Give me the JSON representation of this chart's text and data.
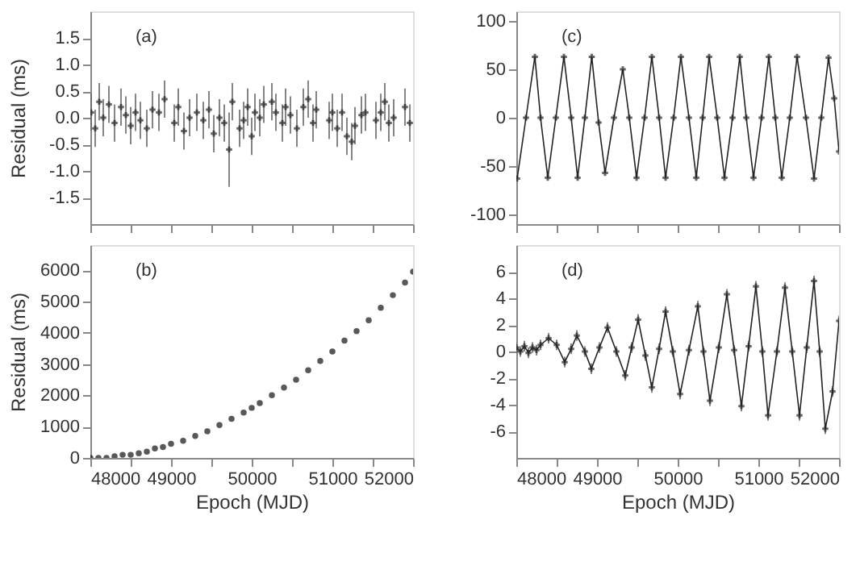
{
  "chart_data": [
    {
      "type": "scatter",
      "ylabel": "Residual (ms)",
      "annotations": [
        "(a)"
      ],
      "marker": "cross",
      "tick_labels": "y",
      "grid": false,
      "xlim": [
        48000,
        52000
      ],
      "xticks": [
        48000,
        {
          "value": 48500,
          "label": null
        },
        49000,
        {
          "value": 49500,
          "label": null
        },
        50000,
        {
          "value": 50500,
          "label": null
        },
        51000,
        {
          "value": 51500,
          "label": null
        },
        52000
      ],
      "ylim": [
        -2,
        2
      ],
      "yticks": [
        -1.5,
        {
          "value": -1,
          "label": "-1.0"
        },
        -0.5,
        {
          "value": 0,
          "label": "0.0"
        },
        0.5,
        {
          "value": 1,
          "label": "1.0"
        },
        1.5
      ],
      "series": [
        {
          "color": "#222222",
          "x": [
            48010,
            48060,
            48110,
            48160,
            48230,
            48300,
            48380,
            48440,
            48500,
            48560,
            48620,
            48700,
            48770,
            48850,
            48920,
            49040,
            49090,
            49160,
            49230,
            49320,
            49400,
            49470,
            49530,
            49600,
            49660,
            49720,
            49760,
            49850,
            49900,
            49950,
            50000,
            50040,
            50100,
            50150,
            50250,
            50300,
            50380,
            50420,
            50480,
            50560,
            50640,
            50700,
            50760,
            50800,
            50960,
            51000,
            51060,
            51120,
            51180,
            51240,
            51280,
            51360,
            51410,
            51540,
            51600,
            51650,
            51700,
            51760,
            51900,
            51960
          ],
          "values": [
            0.1,
            -0.2,
            0.3,
            0.0,
            0.25,
            -0.1,
            0.2,
            0.05,
            -0.15,
            0.1,
            -0.05,
            -0.2,
            0.15,
            0.1,
            0.35,
            -0.1,
            0.2,
            -0.25,
            0.0,
            0.1,
            -0.05,
            0.15,
            -0.3,
            0.0,
            -0.1,
            -0.6,
            0.3,
            -0.2,
            -0.05,
            0.2,
            -0.35,
            0.1,
            0.0,
            0.25,
            0.3,
            0.1,
            -0.1,
            0.2,
            0.05,
            -0.2,
            0.2,
            0.35,
            -0.1,
            0.15,
            -0.05,
            0.1,
            -0.2,
            0.1,
            -0.35,
            -0.45,
            -0.15,
            0.05,
            0.1,
            -0.05,
            0.1,
            0.3,
            -0.1,
            0.0,
            0.2,
            -0.1
          ],
          "errors": [
            0.35,
            0.35,
            0.35,
            0.35,
            0.35,
            0.35,
            0.35,
            0.35,
            0.35,
            0.35,
            0.35,
            0.35,
            0.35,
            0.35,
            0.35,
            0.35,
            0.35,
            0.35,
            0.35,
            0.35,
            0.35,
            0.35,
            0.35,
            0.35,
            0.35,
            0.7,
            0.35,
            0.35,
            0.35,
            0.35,
            0.35,
            0.35,
            0.35,
            0.35,
            0.35,
            0.35,
            0.35,
            0.35,
            0.35,
            0.35,
            0.35,
            0.35,
            0.35,
            0.35,
            0.35,
            0.35,
            0.35,
            0.35,
            0.35,
            0.35,
            0.35,
            0.35,
            0.35,
            0.35,
            0.35,
            0.35,
            0.35,
            0.35,
            0.35,
            0.35
          ]
        }
      ]
    },
    {
      "type": "line",
      "annotations": [
        "(c)"
      ],
      "marker": "cross",
      "tick_labels": "y",
      "grid": false,
      "xlim": [
        48000,
        52000
      ],
      "xticks": [
        48000,
        {
          "value": 48500,
          "label": null
        },
        49000,
        {
          "value": 49500,
          "label": null
        },
        50000,
        {
          "value": 50500,
          "label": null
        },
        51000,
        {
          "value": 51500,
          "label": null
        },
        52000
      ],
      "ylim": [
        -110,
        110
      ],
      "yticks": [
        -100,
        -50,
        0,
        50,
        100
      ],
      "series": [
        {
          "color": "#222222",
          "x": [
            48010,
            48120,
            48230,
            48300,
            48390,
            48490,
            48590,
            48680,
            48760,
            48850,
            48935,
            49020,
            49100,
            49210,
            49320,
            49400,
            49490,
            49590,
            49680,
            49770,
            49850,
            49950,
            50040,
            50140,
            50230,
            50310,
            50390,
            50490,
            50580,
            50680,
            50770,
            50850,
            50940,
            51040,
            51130,
            51210,
            51290,
            51390,
            51480,
            51590,
            51690,
            51780,
            51870,
            51940,
            52000
          ],
          "values": [
            -63,
            0,
            63,
            0,
            -62,
            0,
            63,
            0,
            -62,
            0,
            63,
            -5,
            -57,
            0,
            50,
            0,
            -62,
            0,
            63,
            0,
            -62,
            0,
            63,
            0,
            -62,
            0,
            63,
            0,
            -62,
            0,
            63,
            0,
            -62,
            0,
            63,
            0,
            -62,
            0,
            63,
            0,
            -63,
            0,
            62,
            20,
            -35
          ]
        }
      ]
    },
    {
      "type": "scatter",
      "xlabel": "Epoch (MJD)",
      "ylabel": "Residual (ms)",
      "annotations": [
        "(b)"
      ],
      "marker": "circle",
      "grid": false,
      "xlim": [
        48000,
        52000
      ],
      "xticks": [
        48000,
        {
          "value": 48500,
          "label": null
        },
        49000,
        {
          "value": 49500,
          "label": null
        },
        50000,
        {
          "value": 50500,
          "label": null
        },
        51000,
        {
          "value": 51500,
          "label": null
        },
        52000
      ],
      "ylim": [
        0,
        6800
      ],
      "yticks": [
        0,
        1000,
        2000,
        3000,
        4000,
        5000,
        6000
      ],
      "series": [
        {
          "color": "#111111",
          "x": [
            48000,
            48100,
            48200,
            48300,
            48400,
            48500,
            48600,
            48700,
            48800,
            48900,
            49000,
            49150,
            49300,
            49450,
            49600,
            49750,
            49900,
            50000,
            50100,
            50250,
            50400,
            50550,
            50700,
            50850,
            51000,
            51150,
            51300,
            51450,
            51600,
            51750,
            51900,
            52000
          ],
          "values": [
            0,
            0,
            0,
            50,
            100,
            100,
            150,
            200,
            300,
            350,
            450,
            550,
            700,
            850,
            1050,
            1250,
            1450,
            1600,
            1750,
            2000,
            2250,
            2500,
            2800,
            3100,
            3400,
            3750,
            4050,
            4400,
            4800,
            5200,
            5600,
            5950
          ]
        }
      ]
    },
    {
      "type": "line",
      "xlabel": "Epoch (MJD)",
      "annotations": [
        "(d)"
      ],
      "marker": "cross",
      "grid": false,
      "xlim": [
        48000,
        52000
      ],
      "xticks": [
        48000,
        {
          "value": 48500,
          "label": null
        },
        49000,
        {
          "value": 49500,
          "label": null
        },
        50000,
        {
          "value": 50500,
          "label": null
        },
        51000,
        {
          "value": 51500,
          "label": null
        },
        52000
      ],
      "ylim": [
        -8,
        8
      ],
      "yticks": [
        -6,
        -4,
        -2,
        0,
        2,
        4,
        6
      ],
      "series": [
        {
          "color": "#222222",
          "x": [
            48000,
            48050,
            48100,
            48150,
            48200,
            48250,
            48300,
            48400,
            48500,
            48600,
            48680,
            48750,
            48850,
            48930,
            49030,
            49130,
            49240,
            49350,
            49430,
            49510,
            49600,
            49680,
            49770,
            49850,
            49940,
            50030,
            50140,
            50250,
            50320,
            50400,
            50510,
            50610,
            50700,
            50790,
            50880,
            50970,
            51050,
            51120,
            51230,
            51330,
            51420,
            51510,
            51600,
            51690,
            51760,
            51830,
            51920,
            52000
          ],
          "values": [
            0.3,
            0.0,
            0.4,
            -0.1,
            0.3,
            0.1,
            0.5,
            1.0,
            0.5,
            -0.8,
            0.2,
            1.2,
            0.0,
            -1.3,
            0.3,
            1.8,
            0.0,
            -1.8,
            0.3,
            2.4,
            -0.3,
            -2.7,
            0.2,
            3.0,
            0.0,
            -3.2,
            0.1,
            3.4,
            0.0,
            -3.7,
            0.3,
            4.3,
            0.1,
            -4.1,
            0.4,
            4.9,
            0.0,
            -4.8,
            0.0,
            4.8,
            0.0,
            -4.8,
            0.3,
            5.3,
            0.0,
            -5.8,
            -3.0,
            2.3
          ],
          "errors": [
            0.4,
            0.4,
            0.4,
            0.4,
            0.4,
            0.4,
            0.4,
            0.4,
            0.4,
            0.4,
            0.4,
            0.4,
            0.4,
            0.4,
            0.4,
            0.4,
            0.4,
            0.4,
            0.4,
            0.4,
            0.4,
            0.4,
            0.4,
            0.4,
            0.4,
            0.4,
            0.4,
            0.4,
            0.4,
            0.4,
            0.4,
            0.4,
            0.4,
            0.4,
            0.4,
            0.4,
            0.4,
            0.4,
            0.4,
            0.4,
            0.4,
            0.4,
            0.4,
            0.4,
            0.4,
            0.4,
            0.4,
            0.4
          ]
        }
      ]
    }
  ]
}
